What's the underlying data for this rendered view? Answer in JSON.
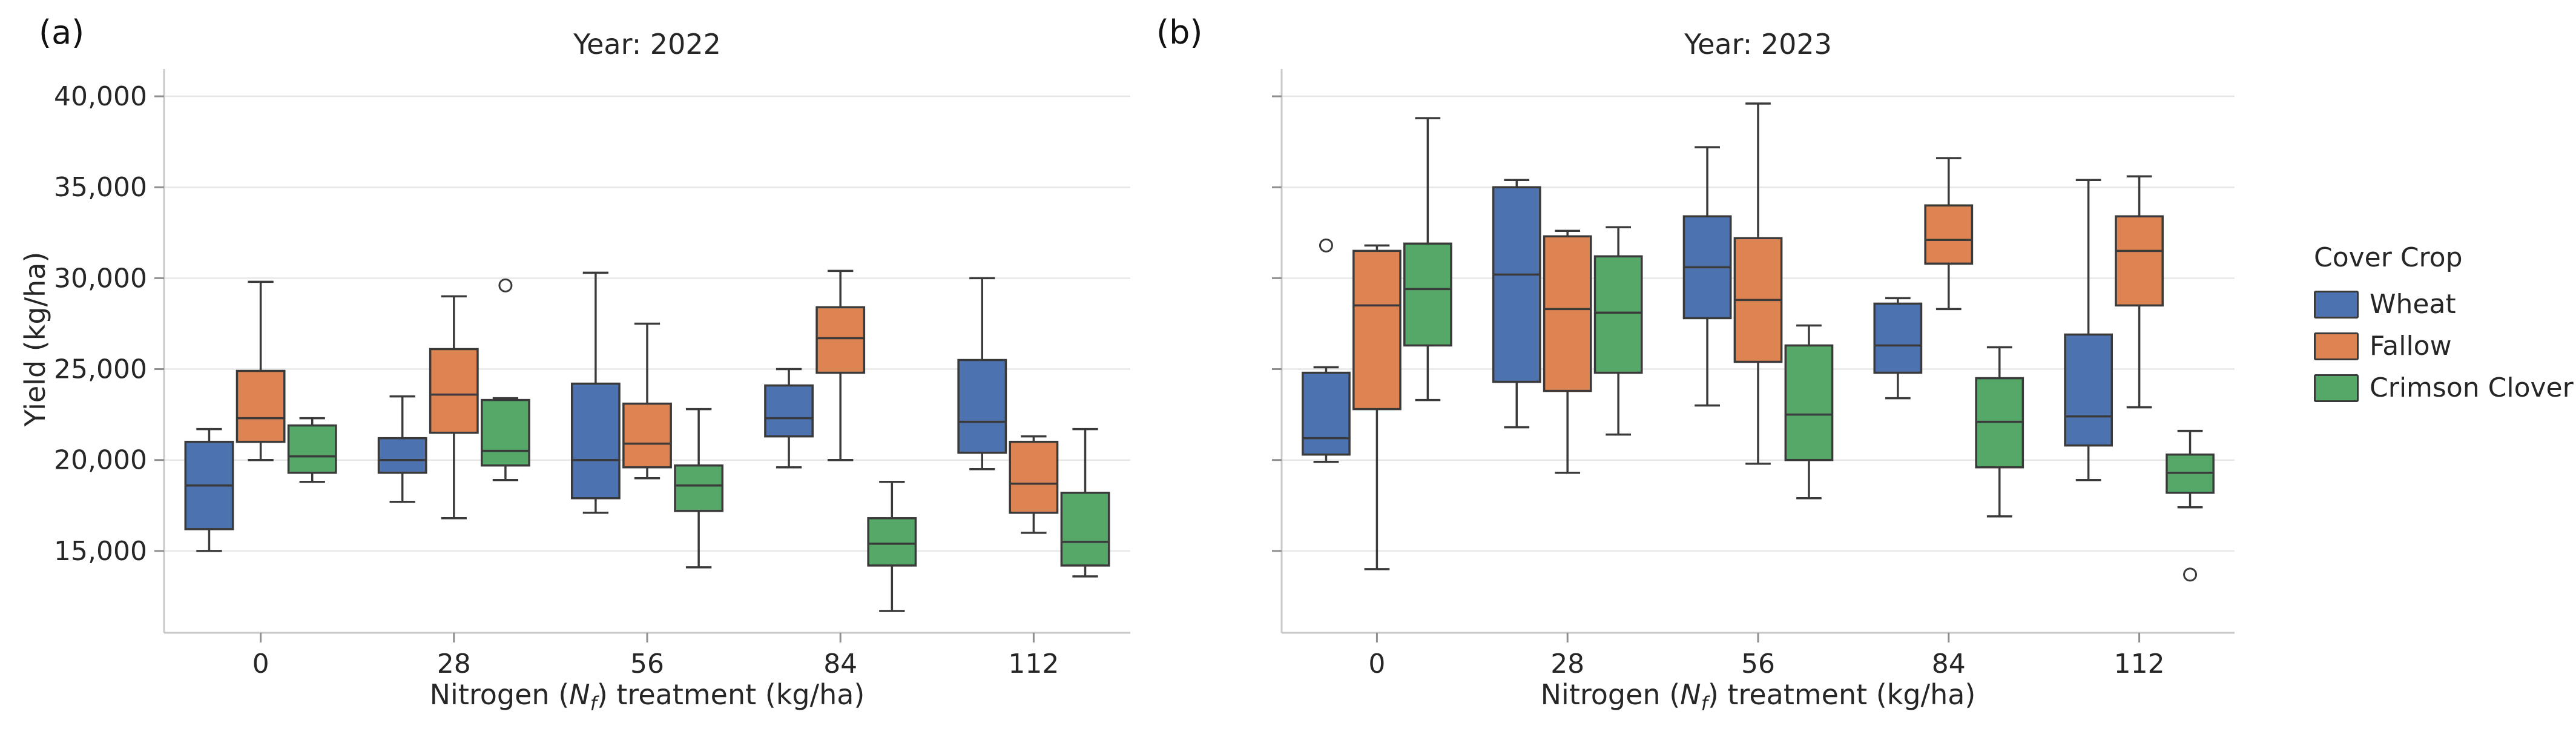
{
  "figure": {
    "panel_a_letter": "(a)",
    "panel_b_letter": "(b)",
    "ylabel": "Yield (kg/ha)",
    "xlabel_parts": {
      "pre": "Nitrogen (",
      "var": "N",
      "sub": "f",
      "post": ") treatment (kg/ha)"
    }
  },
  "legend": {
    "title": "Cover Crop",
    "entries": [
      {
        "label": "Wheat",
        "color": "#4C72B0"
      },
      {
        "label": "Fallow",
        "color": "#DD8452"
      },
      {
        "label": "Crimson Clover",
        "color": "#55A868"
      }
    ]
  },
  "chart_data": [
    {
      "type": "box",
      "title": "Year: 2022",
      "xlabel": "Nitrogen (N_f) treatment (kg/ha)",
      "ylabel": "Yield (kg/ha)",
      "categories": [
        "0",
        "28",
        "56",
        "84",
        "112"
      ],
      "ylim": [
        10500,
        41500
      ],
      "yticks": [
        15000,
        20000,
        25000,
        30000,
        35000,
        40000
      ],
      "ytick_labels": [
        "15,000",
        "20,000",
        "25,000",
        "30,000",
        "35,000",
        "40,000"
      ],
      "show_ytick_labels": true,
      "grid": true,
      "series": [
        {
          "name": "Wheat",
          "color": "#4C72B0",
          "boxes": [
            {
              "whislo": 15000,
              "q1": 16200,
              "med": 18600,
              "q3": 21000,
              "whishi": 21700,
              "outliers": []
            },
            {
              "whislo": 17700,
              "q1": 19300,
              "med": 20000,
              "q3": 21200,
              "whishi": 23500,
              "outliers": []
            },
            {
              "whislo": 17100,
              "q1": 17900,
              "med": 20000,
              "q3": 24200,
              "whishi": 30300,
              "outliers": []
            },
            {
              "whislo": 19600,
              "q1": 21300,
              "med": 22300,
              "q3": 24100,
              "whishi": 25000,
              "outliers": []
            },
            {
              "whislo": 19500,
              "q1": 20400,
              "med": 22100,
              "q3": 25500,
              "whishi": 30000,
              "outliers": []
            }
          ]
        },
        {
          "name": "Fallow",
          "color": "#DD8452",
          "boxes": [
            {
              "whislo": 20000,
              "q1": 21000,
              "med": 22300,
              "q3": 24900,
              "whishi": 29800,
              "outliers": []
            },
            {
              "whislo": 16800,
              "q1": 21500,
              "med": 23600,
              "q3": 26100,
              "whishi": 29000,
              "outliers": []
            },
            {
              "whislo": 19000,
              "q1": 19600,
              "med": 20900,
              "q3": 23100,
              "whishi": 27500,
              "outliers": []
            },
            {
              "whislo": 20000,
              "q1": 24800,
              "med": 26700,
              "q3": 28400,
              "whishi": 30400,
              "outliers": []
            },
            {
              "whislo": 16000,
              "q1": 17100,
              "med": 18700,
              "q3": 21000,
              "whishi": 21300,
              "outliers": []
            }
          ]
        },
        {
          "name": "Crimson Clover",
          "color": "#55A868",
          "boxes": [
            {
              "whislo": 18800,
              "q1": 19300,
              "med": 20200,
              "q3": 21900,
              "whishi": 22300,
              "outliers": []
            },
            {
              "whislo": 18900,
              "q1": 19700,
              "med": 20500,
              "q3": 23300,
              "whishi": 23400,
              "outliers": [
                29600
              ]
            },
            {
              "whislo": 14100,
              "q1": 17200,
              "med": 18600,
              "q3": 19700,
              "whishi": 22800,
              "outliers": []
            },
            {
              "whislo": 11700,
              "q1": 14200,
              "med": 15400,
              "q3": 16800,
              "whishi": 18800,
              "outliers": []
            },
            {
              "whislo": 13600,
              "q1": 14200,
              "med": 15500,
              "q3": 18200,
              "whishi": 21700,
              "outliers": []
            }
          ]
        }
      ]
    },
    {
      "type": "box",
      "title": "Year: 2023",
      "xlabel": "Nitrogen (N_f) treatment (kg/ha)",
      "ylabel": "Yield (kg/ha)",
      "categories": [
        "0",
        "28",
        "56",
        "84",
        "112"
      ],
      "ylim": [
        10500,
        41500
      ],
      "yticks": [
        15000,
        20000,
        25000,
        30000,
        35000,
        40000
      ],
      "ytick_labels": [
        "15,000",
        "20,000",
        "25,000",
        "30,000",
        "35,000",
        "40,000"
      ],
      "show_ytick_labels": false,
      "grid": true,
      "series": [
        {
          "name": "Wheat",
          "color": "#4C72B0",
          "boxes": [
            {
              "whislo": 19900,
              "q1": 20300,
              "med": 21200,
              "q3": 24800,
              "whishi": 25100,
              "outliers": [
                31800
              ]
            },
            {
              "whislo": 21800,
              "q1": 24300,
              "med": 30200,
              "q3": 35000,
              "whishi": 35400,
              "outliers": []
            },
            {
              "whislo": 23000,
              "q1": 27800,
              "med": 30600,
              "q3": 33400,
              "whishi": 37200,
              "outliers": []
            },
            {
              "whislo": 23400,
              "q1": 24800,
              "med": 26300,
              "q3": 28600,
              "whishi": 28900,
              "outliers": []
            },
            {
              "whislo": 18900,
              "q1": 20800,
              "med": 22400,
              "q3": 26900,
              "whishi": 35400,
              "outliers": []
            }
          ]
        },
        {
          "name": "Fallow",
          "color": "#DD8452",
          "boxes": [
            {
              "whislo": 14000,
              "q1": 22800,
              "med": 28500,
              "q3": 31500,
              "whishi": 31800,
              "outliers": []
            },
            {
              "whislo": 19300,
              "q1": 23800,
              "med": 28300,
              "q3": 32300,
              "whishi": 32600,
              "outliers": []
            },
            {
              "whislo": 19800,
              "q1": 25400,
              "med": 28800,
              "q3": 32200,
              "whishi": 39600,
              "outliers": []
            },
            {
              "whislo": 28300,
              "q1": 30800,
              "med": 32100,
              "q3": 34000,
              "whishi": 36600,
              "outliers": []
            },
            {
              "whislo": 22900,
              "q1": 28500,
              "med": 31500,
              "q3": 33400,
              "whishi": 35600,
              "outliers": []
            }
          ]
        },
        {
          "name": "Crimson Clover",
          "color": "#55A868",
          "boxes": [
            {
              "whislo": 23300,
              "q1": 26300,
              "med": 29400,
              "q3": 31900,
              "whishi": 38800,
              "outliers": []
            },
            {
              "whislo": 21400,
              "q1": 24800,
              "med": 28100,
              "q3": 31200,
              "whishi": 32800,
              "outliers": []
            },
            {
              "whislo": 17900,
              "q1": 20000,
              "med": 22500,
              "q3": 26300,
              "whishi": 27400,
              "outliers": []
            },
            {
              "whislo": 16900,
              "q1": 19600,
              "med": 22100,
              "q3": 24500,
              "whishi": 26200,
              "outliers": []
            },
            {
              "whislo": 17400,
              "q1": 18200,
              "med": 19300,
              "q3": 20300,
              "whishi": 21600,
              "outliers": [
                13700
              ]
            }
          ]
        }
      ]
    }
  ]
}
